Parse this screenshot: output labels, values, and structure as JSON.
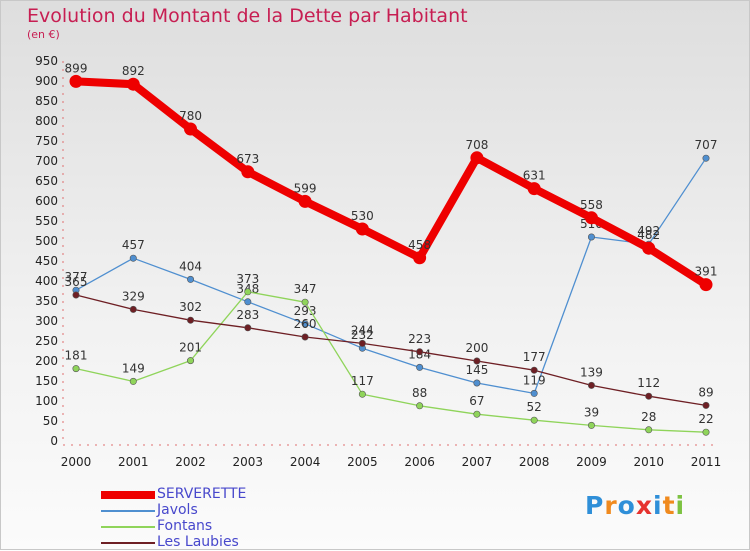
{
  "title": "Evolution du Montant de la Dette par Habitant",
  "unit": "(en €)",
  "logo": {
    "letters": [
      "P",
      "r",
      "o",
      "x",
      "i",
      "t",
      "i"
    ],
    "colors": [
      "#2f8fd8",
      "#f08a1e",
      "#2f8fd8",
      "#e6322e",
      "#2f8fd8",
      "#f08a1e",
      "#7dc242"
    ]
  },
  "chart_data": {
    "type": "line",
    "x": [
      "2000",
      "2001",
      "2002",
      "2003",
      "2004",
      "2005",
      "2006",
      "2007",
      "2008",
      "2009",
      "2010",
      "2011"
    ],
    "ylim": [
      0,
      950
    ],
    "yticks": [
      0,
      50,
      100,
      150,
      200,
      250,
      300,
      350,
      400,
      450,
      500,
      550,
      600,
      650,
      700,
      750,
      800,
      850,
      900,
      950
    ],
    "grid": false,
    "legend": "bottom-left",
    "series": [
      {
        "name": "SERVERETTE",
        "color": "#ee0000",
        "values": [
          899,
          892,
          780,
          673,
          599,
          530,
          458,
          708,
          631,
          558,
          482,
          391
        ]
      },
      {
        "name": "Javols",
        "color": "#4f8fd0",
        "values": [
          377,
          457,
          404,
          348,
          293,
          232,
          184,
          145,
          119,
          510,
          492,
          707
        ]
      },
      {
        "name": "Fontans",
        "color": "#8fd45a",
        "values": [
          181,
          149,
          201,
          373,
          347,
          117,
          88,
          67,
          52,
          39,
          28,
          22
        ]
      },
      {
        "name": "Les Laubies",
        "color": "#6e1f24",
        "values": [
          365,
          329,
          302,
          283,
          260,
          244,
          223,
          200,
          177,
          139,
          112,
          89
        ]
      }
    ]
  }
}
